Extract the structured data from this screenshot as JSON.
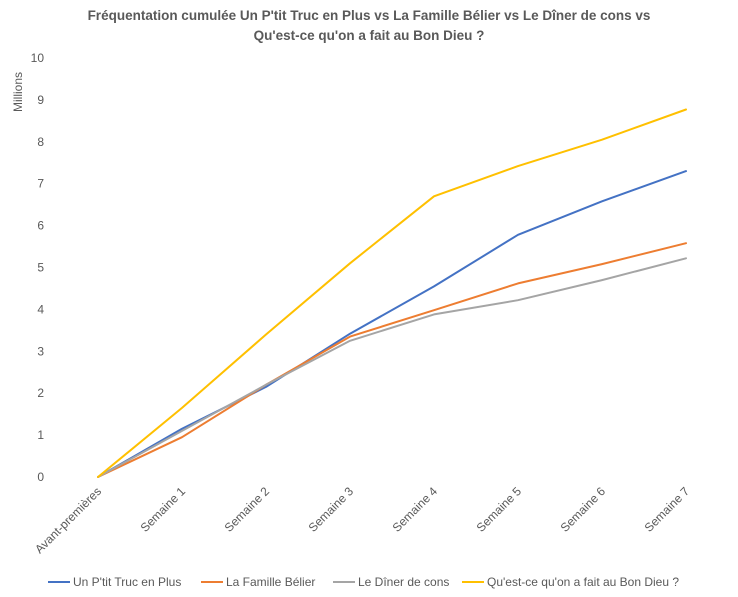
{
  "chart_data": {
    "type": "line",
    "title_lines": [
      "Fréquentation cumulée Un P'tit Truc en Plus vs La Famille Bélier vs Le Dîner de cons vs",
      "Qu'est-ce qu'on a fait au Bon Dieu ?"
    ],
    "xlabel": "",
    "ylabel": "Millions",
    "ylim": [
      0,
      10
    ],
    "yticks": [
      0,
      1,
      2,
      3,
      4,
      5,
      6,
      7,
      8,
      9,
      10
    ],
    "grid": false,
    "legend_position": "bottom",
    "categories": [
      "Avant-premières",
      "Semaine 1",
      "Semaine 2",
      "Semaine 3",
      "Semaine 4",
      "Semaine 5",
      "Semaine 6",
      "Semaine 7"
    ],
    "series": [
      {
        "name": "Un P'tit Truc en Plus",
        "color": "#4472C4",
        "values": [
          0,
          1.15,
          2.15,
          3.42,
          4.55,
          5.78,
          6.58,
          7.3
        ]
      },
      {
        "name": "La Famille Bélier",
        "color": "#ED7D31",
        "values": [
          0,
          0.95,
          2.2,
          3.35,
          3.98,
          4.62,
          5.08,
          5.58
        ]
      },
      {
        "name": "Le Dîner de cons",
        "color": "#A5A5A5",
        "values": [
          0,
          1.1,
          2.2,
          3.25,
          3.88,
          4.22,
          4.7,
          5.22
        ]
      },
      {
        "name": "Qu'est-ce qu'on a fait au Bon Dieu ?",
        "color": "#FFC000",
        "values": [
          0,
          1.65,
          3.4,
          5.1,
          6.7,
          7.42,
          8.05,
          8.77
        ]
      }
    ]
  }
}
